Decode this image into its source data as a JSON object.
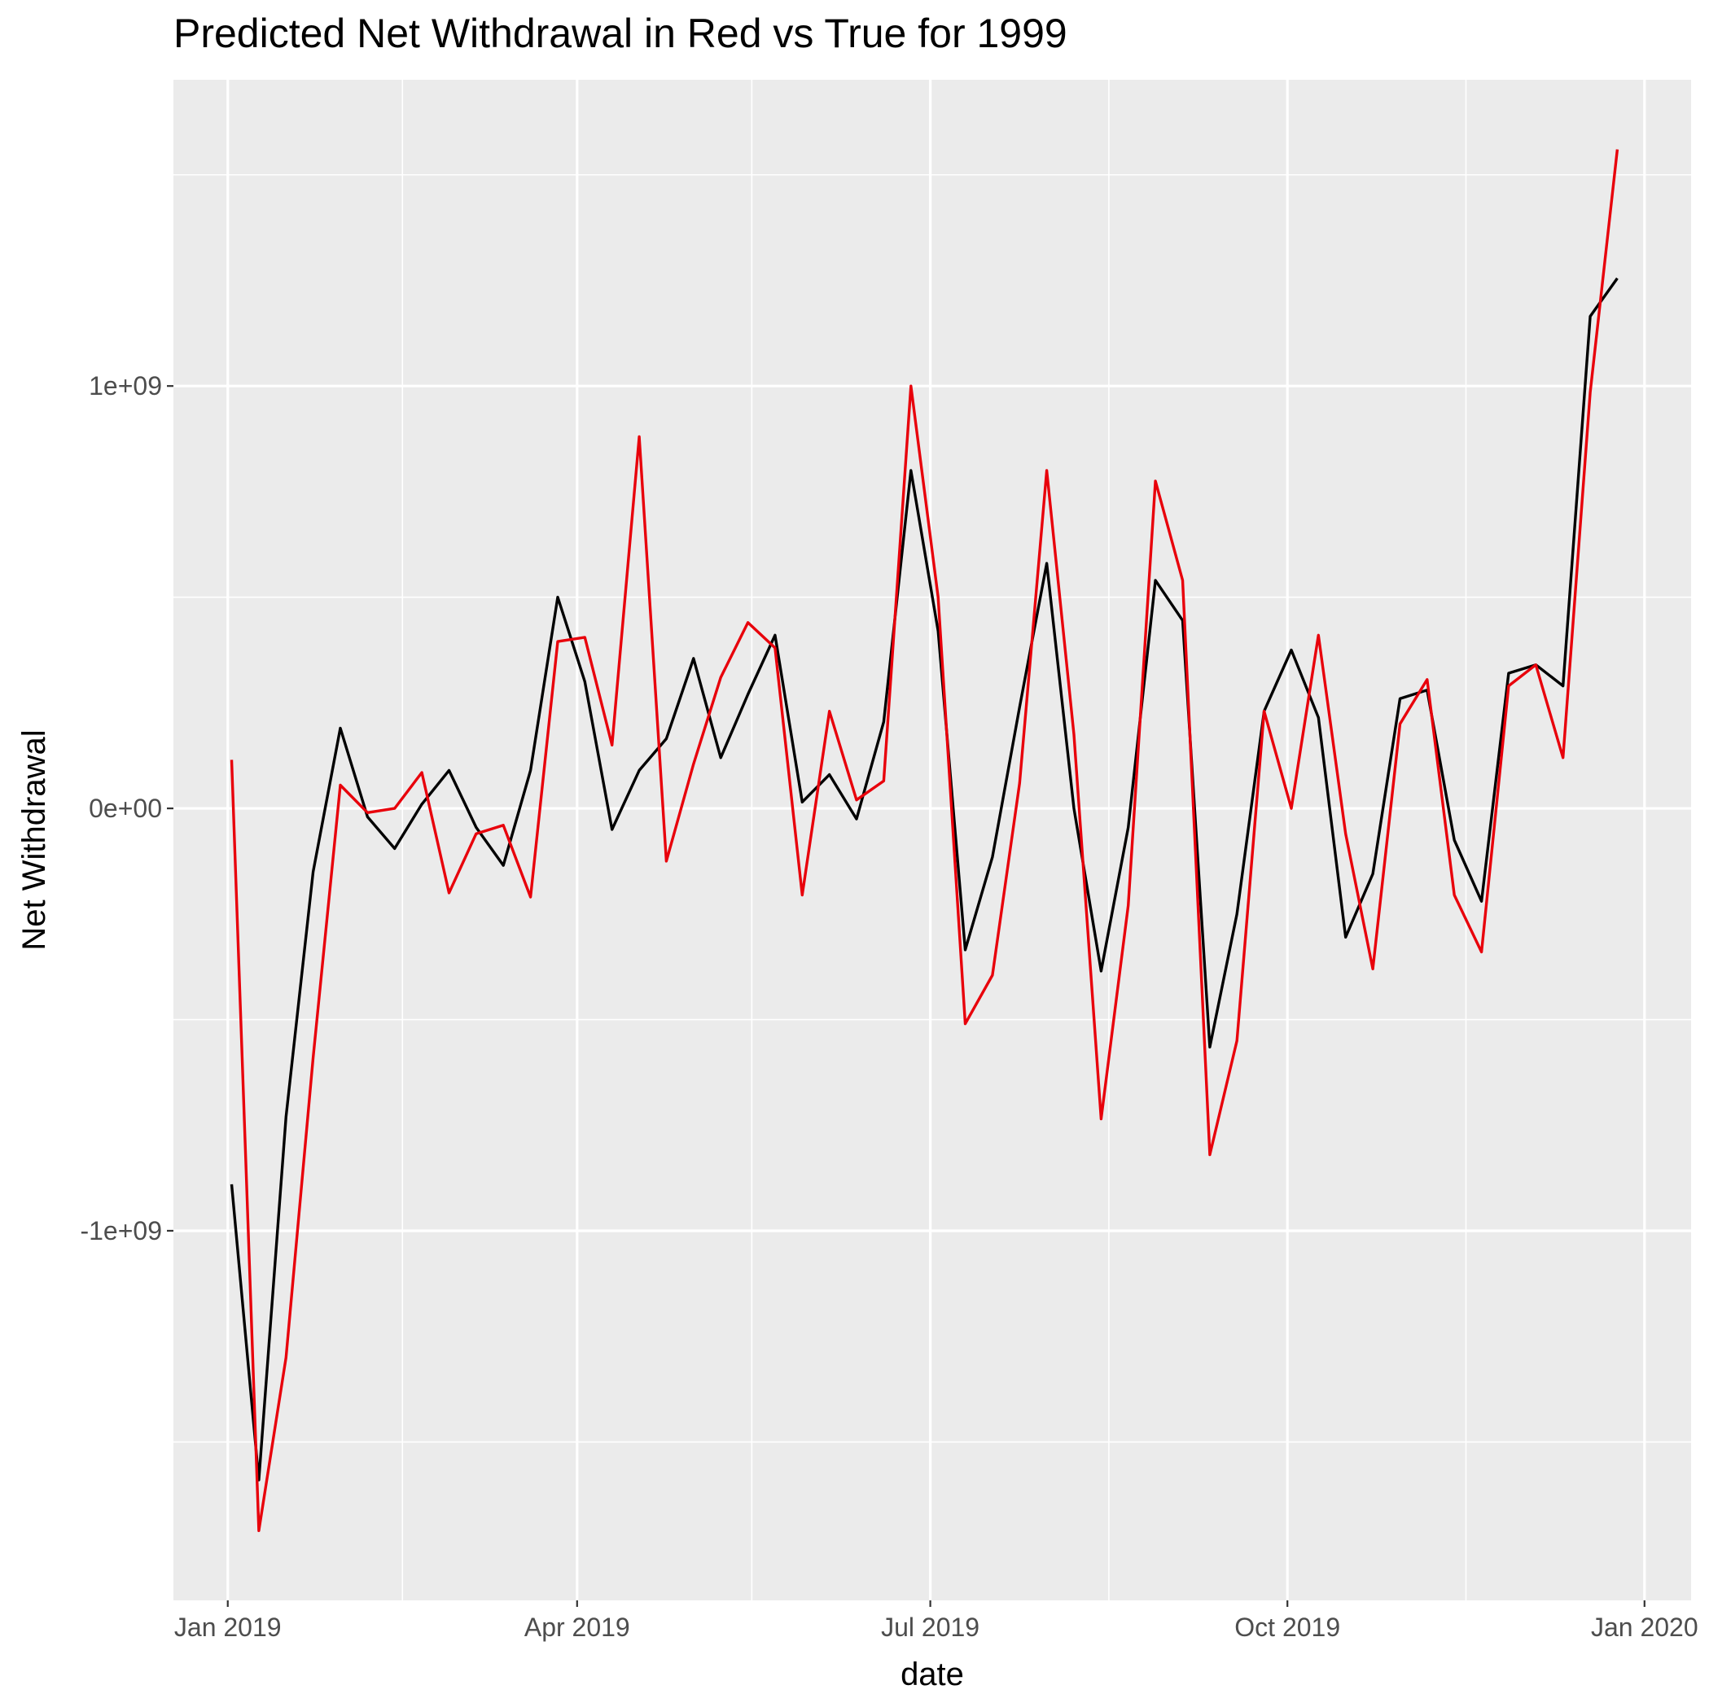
{
  "chart_data": {
    "type": "line",
    "title": "Predicted Net Withdrawal in Red vs True for 1999",
    "xlabel": "date",
    "ylabel": "Net Withdrawal",
    "xlim": [
      "2018-12-18",
      "2020-01-13"
    ],
    "ylim": [
      -1875000000,
      1725000000
    ],
    "x_ticks": [
      {
        "date": "2019-01-01",
        "label": "Jan 2019"
      },
      {
        "date": "2019-04-01",
        "label": "Apr 2019"
      },
      {
        "date": "2019-07-01",
        "label": "Jul 2019"
      },
      {
        "date": "2019-10-01",
        "label": "Oct 2019"
      },
      {
        "date": "2020-01-01",
        "label": "Jan 2020"
      }
    ],
    "x_minor_breaks": [
      "2019-02-15",
      "2019-05-16",
      "2019-08-16",
      "2019-11-16"
    ],
    "y_ticks": [
      {
        "value": 1000000000,
        "label": "1e+09"
      },
      {
        "value": 0,
        "label": "0e+00"
      },
      {
        "value": -1000000000,
        "label": "-1e+09"
      }
    ],
    "y_minor_breaks": [
      1500000000,
      500000000,
      -500000000,
      -1500000000
    ],
    "grid": true,
    "legend": "none",
    "colors": {
      "panel": "#ebebeb",
      "grid": "#ffffff",
      "axis_text": "#4d4d4d",
      "title": "#000000"
    },
    "x": [
      "2019-01-02",
      "2019-01-09",
      "2019-01-16",
      "2019-01-23",
      "2019-01-30",
      "2019-02-06",
      "2019-02-13",
      "2019-02-20",
      "2019-02-27",
      "2019-03-06",
      "2019-03-13",
      "2019-03-20",
      "2019-03-27",
      "2019-04-03",
      "2019-04-10",
      "2019-04-17",
      "2019-04-24",
      "2019-05-01",
      "2019-05-08",
      "2019-05-15",
      "2019-05-22",
      "2019-05-29",
      "2019-06-05",
      "2019-06-12",
      "2019-06-19",
      "2019-06-26",
      "2019-07-03",
      "2019-07-10",
      "2019-07-17",
      "2019-07-24",
      "2019-07-31",
      "2019-08-07",
      "2019-08-14",
      "2019-08-21",
      "2019-08-28",
      "2019-09-04",
      "2019-09-11",
      "2019-09-18",
      "2019-09-25",
      "2019-10-02",
      "2019-10-09",
      "2019-10-16",
      "2019-10-23",
      "2019-10-30",
      "2019-11-06",
      "2019-11-13",
      "2019-11-20",
      "2019-11-27",
      "2019-12-04",
      "2019-12-11",
      "2019-12-18",
      "2019-12-25"
    ],
    "series": [
      {
        "color": "#000000",
        "values": [
          -890000000,
          -1590000000,
          -730000000,
          -150000000,
          190000000,
          -20000000,
          -95000000,
          10000000,
          90000000,
          -45000000,
          -135000000,
          90000000,
          500000000,
          300000000,
          -50000000,
          90000000,
          165000000,
          355000000,
          120000000,
          270000000,
          410000000,
          15000000,
          80000000,
          -25000000,
          205000000,
          800000000,
          420000000,
          -335000000,
          -115000000,
          240000000,
          580000000,
          0,
          -385000000,
          -45000000,
          540000000,
          445000000,
          -565000000,
          -250000000,
          230000000,
          375000000,
          215000000,
          -305000000,
          -155000000,
          260000000,
          280000000,
          -75000000,
          -220000000,
          320000000,
          340000000,
          290000000,
          1165000000,
          1255000000
        ]
      },
      {
        "color": "#e8000b",
        "values": [
          115000000,
          -1710000000,
          -1300000000,
          -590000000,
          55000000,
          -10000000,
          0,
          85000000,
          -200000000,
          -60000000,
          -40000000,
          -210000000,
          395000000,
          405000000,
          150000000,
          880000000,
          -125000000,
          105000000,
          310000000,
          440000000,
          380000000,
          -205000000,
          230000000,
          20000000,
          65000000,
          1000000000,
          500000000,
          -510000000,
          -395000000,
          60000000,
          800000000,
          175000000,
          -735000000,
          -230000000,
          775000000,
          540000000,
          -820000000,
          -550000000,
          230000000,
          0,
          410000000,
          -60000000,
          -380000000,
          200000000,
          305000000,
          -205000000,
          -340000000,
          290000000,
          340000000,
          120000000,
          985000000,
          1560000000
        ]
      }
    ]
  }
}
